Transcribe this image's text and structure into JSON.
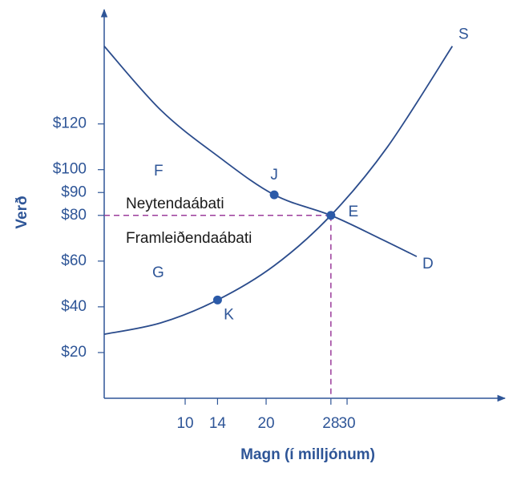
{
  "chart_data": {
    "type": "line",
    "x_label": "Magn (í milljónum)",
    "y_label": "Verð",
    "xlim": [
      0,
      49.5
    ],
    "ylim": [
      0,
      170
    ],
    "xticks": [
      10,
      14,
      20,
      28,
      30
    ],
    "yticks": [
      {
        "value": 20,
        "label": "$20"
      },
      {
        "value": 40,
        "label": "$40"
      },
      {
        "value": 60,
        "label": "$60"
      },
      {
        "value": 80,
        "label": "$80"
      },
      {
        "value": 90,
        "label": "$90"
      },
      {
        "value": 100,
        "label": "$100"
      },
      {
        "value": 120,
        "label": "$120"
      }
    ],
    "series": [
      {
        "name": "S",
        "color": "#2b4c8c",
        "x": [
          0,
          7,
          14,
          21,
          28,
          35,
          43
        ],
        "values": [
          28,
          33,
          43,
          58,
          80,
          110,
          154
        ]
      },
      {
        "name": "D",
        "color": "#2b4c8c",
        "x": [
          0,
          7,
          14,
          21,
          28,
          34,
          38.6
        ],
        "values": [
          154,
          126,
          106,
          89,
          80,
          70,
          62
        ]
      }
    ],
    "points": [
      {
        "label": "J",
        "x": 21,
        "y": 89
      },
      {
        "label": "E",
        "x": 28,
        "y": 80
      },
      {
        "label": "K",
        "x": 14,
        "y": 43
      }
    ],
    "annotations": [
      "Neytendaábati",
      "Framleiðendaábati",
      "F",
      "G"
    ]
  }
}
